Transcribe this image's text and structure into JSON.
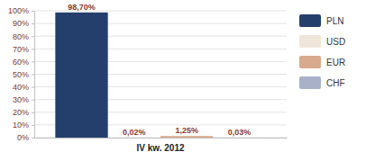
{
  "chart_data": {
    "type": "bar",
    "categories": [
      "IV kw. 2012"
    ],
    "series": [
      {
        "name": "PLN",
        "color": "#243f6b",
        "values": [
          98.7
        ],
        "value_labels": [
          "98,70%"
        ]
      },
      {
        "name": "USD",
        "color": "#efe5da",
        "values": [
          0.02
        ],
        "value_labels": [
          "0,02%"
        ]
      },
      {
        "name": "EUR",
        "color": "#d8a98c",
        "values": [
          1.25
        ],
        "value_labels": [
          "1,25%"
        ]
      },
      {
        "name": "CHF",
        "color": "#a9b1c8",
        "values": [
          0.03
        ],
        "value_labels": [
          "0,03%"
        ]
      }
    ],
    "ylim": [
      0,
      100
    ],
    "yticks": [
      {
        "value": 0,
        "label": "0%"
      },
      {
        "value": 10,
        "label": "10%"
      },
      {
        "value": 20,
        "label": "20%"
      },
      {
        "value": 30,
        "label": "30%"
      },
      {
        "value": 40,
        "label": "40%"
      },
      {
        "value": 50,
        "label": "50%"
      },
      {
        "value": 60,
        "label": "60%"
      },
      {
        "value": 70,
        "label": "70%"
      },
      {
        "value": 80,
        "label": "80%"
      },
      {
        "value": 90,
        "label": "90%"
      },
      {
        "value": 100,
        "label": "100%"
      }
    ],
    "grid": true,
    "legend": "right",
    "data_labels": true
  }
}
